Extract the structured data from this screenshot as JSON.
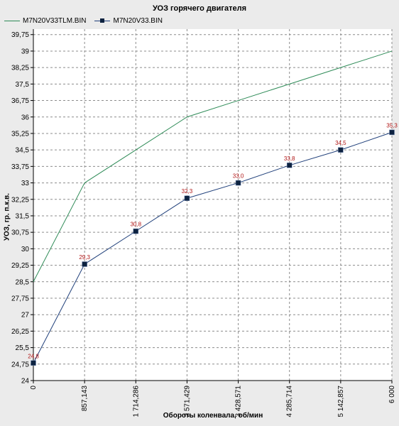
{
  "chart_data": {
    "type": "line",
    "title": "УОЗ горячего двигателя",
    "xlabel": "Обороты коленвала, об/мин",
    "ylabel": "УОЗ, гр. п.к.в.",
    "x": [
      0,
      857.143,
      1714.286,
      2571.429,
      3428.571,
      4285.714,
      5142.857,
      6000
    ],
    "x_tick_labels": [
      "0",
      "857,143",
      "1 714,286",
      "2 571,429",
      "3 428,571",
      "4 285,714",
      "5 142,857",
      "6 000"
    ],
    "xlim": [
      0,
      6000
    ],
    "ylim": [
      24,
      40
    ],
    "y_ticks": [
      24,
      24.75,
      25.5,
      26.25,
      27,
      27.75,
      28.5,
      29.25,
      30,
      30.75,
      31.5,
      32.25,
      33,
      33.75,
      34.5,
      35.25,
      36,
      36.75,
      37.5,
      38.25,
      39,
      39.75
    ],
    "y_tick_labels": [
      "24",
      "24,75",
      "25,5",
      "26,25",
      "27",
      "27,75",
      "28,5",
      "29,25",
      "30",
      "30,75",
      "31,5",
      "32,25",
      "33",
      "33,75",
      "34,5",
      "35,25",
      "36",
      "36,75",
      "37,5",
      "38,25",
      "39",
      "39,75"
    ],
    "grid": true,
    "legend_position": "top-left",
    "series": [
      {
        "name": "M7N20V33TLM.BIN",
        "color": "#2e8b57",
        "markers": false,
        "values": [
          28.5,
          33.0,
          34.5,
          36.0,
          36.75,
          37.5,
          38.25,
          39.0
        ]
      },
      {
        "name": "M7N20V33.BIN",
        "color": "#1f3f7a",
        "marker_color": "#0d2240",
        "markers": true,
        "values": [
          24.8,
          29.3,
          30.8,
          32.3,
          33.0,
          33.8,
          34.5,
          35.3
        ],
        "data_labels": [
          "24,8",
          "29,3",
          "30,8",
          "32,3",
          "33,0",
          "33,8",
          "34,5",
          "35,3"
        ],
        "data_label_color": "#b01515"
      }
    ]
  }
}
